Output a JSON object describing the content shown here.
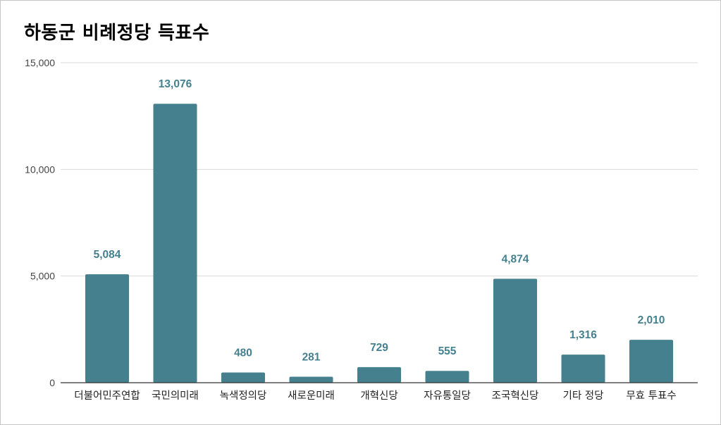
{
  "chart_data": {
    "type": "bar",
    "title": "하동군 비례정당 득표수",
    "categories": [
      "더불어민주연합",
      "국민의미래",
      "녹색정의당",
      "새로운미래",
      "개혁신당",
      "자유통일당",
      "조국혁신당",
      "기타 정당",
      "무효 투표수"
    ],
    "values": [
      5084,
      13076,
      480,
      281,
      729,
      555,
      4874,
      1316,
      2010
    ],
    "data_labels": [
      "5,084",
      "13,076",
      "480",
      "281",
      "729",
      "555",
      "4,874",
      "1,316",
      "2,010"
    ],
    "xlabel": "",
    "ylabel": "",
    "ylim": [
      0,
      15000
    ],
    "yticks": [
      0,
      5000,
      10000,
      15000
    ],
    "ytick_labels": [
      "0",
      "5,000",
      "10,000",
      "15,000"
    ],
    "grid": true,
    "legend": "none",
    "colors": {
      "bar": "#45808f",
      "data_label": "#45808f",
      "grid": "#d9d9d9",
      "axis": "#333333"
    }
  }
}
